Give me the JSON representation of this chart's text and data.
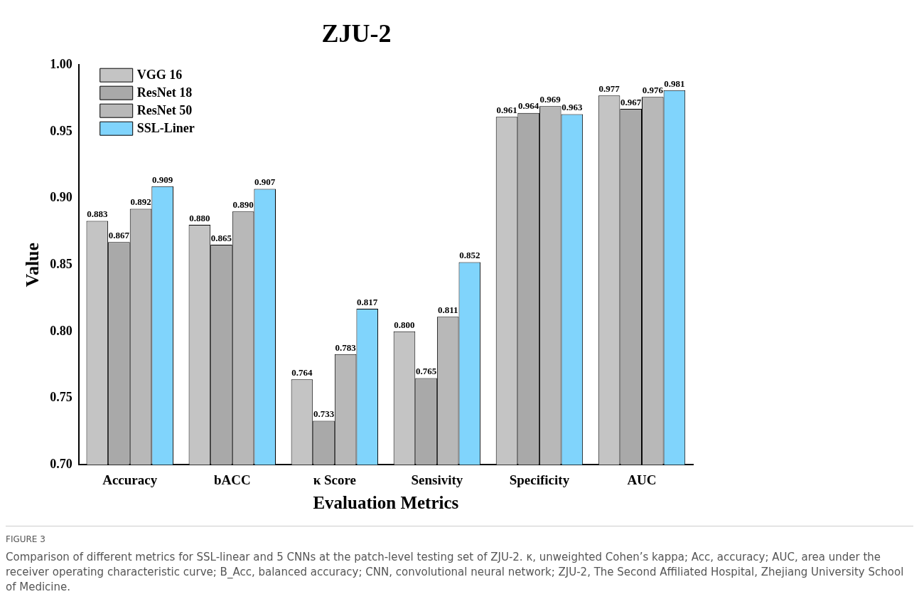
{
  "chart_data": {
    "type": "bar",
    "title": "ZJU-2",
    "xlabel": "Evaluation Metrics",
    "ylabel": "Value",
    "categories": [
      "Accuracy",
      "bACC",
      "κ Score",
      "Sensivity",
      "Specificity",
      "AUC"
    ],
    "series": [
      {
        "name": "VGG 16",
        "color": "#c4c4c4",
        "values": [
          0.883,
          0.88,
          0.764,
          0.8,
          0.961,
          0.977
        ],
        "value_labels": [
          "0.883",
          "0.880",
          "0.764",
          "0.800",
          "0.961",
          "0.977"
        ]
      },
      {
        "name": "ResNet 18",
        "color": "#a9a9a9",
        "values": [
          0.867,
          0.865,
          0.733,
          0.765,
          0.964,
          0.967
        ],
        "value_labels": [
          "0.867",
          "0.865",
          "0.733",
          "0.765",
          "0.964",
          "0.967"
        ]
      },
      {
        "name": "ResNet 50",
        "color": "#b8b8b8",
        "values": [
          0.892,
          0.89,
          0.783,
          0.811,
          0.969,
          0.976
        ],
        "value_labels": [
          "0.892",
          "0.890",
          "0.783",
          "0.811",
          "0.969",
          "0.976"
        ]
      },
      {
        "name": "SSL-Liner",
        "color": "#80d4fc",
        "values": [
          0.909,
          0.907,
          0.817,
          0.852,
          0.963,
          0.981
        ],
        "value_labels": [
          "0.909",
          "0.907",
          "0.817",
          "0.852",
          "0.963",
          "0.981"
        ]
      }
    ],
    "ylim": [
      0.7,
      1.0
    ],
    "yticks": [
      {
        "value": 0.7,
        "label": "0.70"
      },
      {
        "value": 0.75,
        "label": "0.75"
      },
      {
        "value": 0.8,
        "label": "0.80"
      },
      {
        "value": 0.85,
        "label": "0.85"
      },
      {
        "value": 0.9,
        "label": "0.90"
      },
      {
        "value": 0.95,
        "label": "0.95"
      },
      {
        "value": 1.0,
        "label": "1.00"
      }
    ],
    "legend": "top left",
    "grid": false,
    "annotations": [
      "FIGURE 3",
      "Comparison of different metrics for SSL-linear and 5 CNNs at the patch-level testing set of ZJU-2. κ, unweighted Cohen’s kappa; Acc, accuracy; AUC, area under the receiver operating characteristic curve; B_Acc, balanced accuracy; CNN, convolutional neural network; ZJU-2, The Second Affiliated Hospital, Zhejiang University School of Medicine."
    ]
  }
}
